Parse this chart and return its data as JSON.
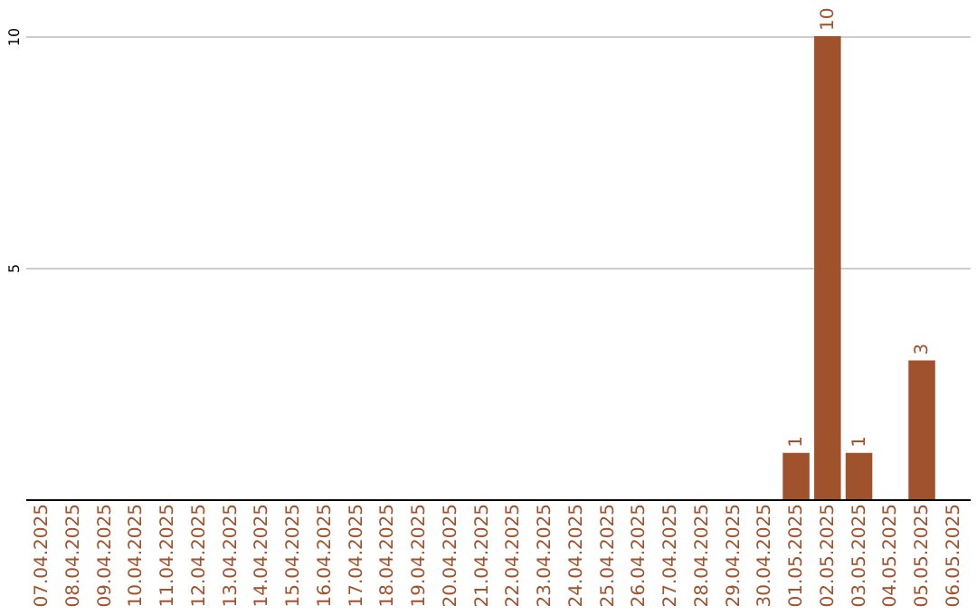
{
  "chart_data": {
    "type": "bar",
    "categories": [
      "07.04.2025",
      "08.04.2025",
      "09.04.2025",
      "10.04.2025",
      "11.04.2025",
      "12.04.2025",
      "13.04.2025",
      "14.04.2025",
      "15.04.2025",
      "16.04.2025",
      "17.04.2025",
      "18.04.2025",
      "19.04.2025",
      "20.04.2025",
      "21.04.2025",
      "22.04.2025",
      "23.04.2025",
      "24.04.2025",
      "25.04.2025",
      "26.04.2025",
      "27.04.2025",
      "28.04.2025",
      "29.04.2025",
      "30.04.2025",
      "01.05.2025",
      "02.05.2025",
      "03.05.2025",
      "04.05.2025",
      "05.05.2025",
      "06.05.2025"
    ],
    "values": [
      0,
      0,
      0,
      0,
      0,
      0,
      0,
      0,
      0,
      0,
      0,
      0,
      0,
      0,
      0,
      0,
      0,
      0,
      0,
      0,
      0,
      0,
      0,
      0,
      1,
      10,
      1,
      0,
      3,
      0
    ],
    "value_labels": [
      null,
      null,
      null,
      null,
      null,
      null,
      null,
      null,
      null,
      null,
      null,
      null,
      null,
      null,
      null,
      null,
      null,
      null,
      null,
      null,
      null,
      null,
      null,
      null,
      "1",
      "10",
      "1",
      null,
      "3",
      null
    ],
    "color": "#a0522d",
    "ylim": [
      0,
      10
    ],
    "yticks": [
      5,
      10
    ],
    "grid": "y"
  }
}
